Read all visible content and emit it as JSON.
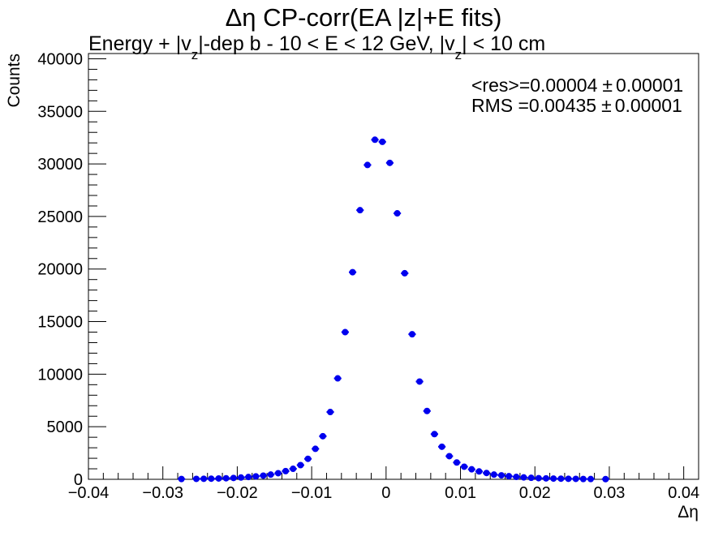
{
  "chart_data": {
    "type": "scatter",
    "title": "Δη CP-corr(EA |z|+E fits)",
    "subtitle": {
      "part1": "Energy + |v",
      "sub1": "z",
      "part2": "|-dep b   -   10 < E < 12 GeV, |v",
      "sub2": "z",
      "part3": "| < 10 cm"
    },
    "xlabel": "Δη",
    "ylabel": "Counts",
    "xlim": [
      -0.04,
      0.042
    ],
    "ylim": [
      0,
      40500
    ],
    "xticks": [
      -0.04,
      -0.03,
      -0.02,
      -0.01,
      0,
      0.01,
      0.02,
      0.03,
      0.04
    ],
    "xtick_labels": [
      "−0.04",
      "−0.03",
      "−0.02",
      "−0.01",
      "0",
      "0.01",
      "0.02",
      "0.03",
      "0.04"
    ],
    "yticks": [
      0,
      5000,
      10000,
      15000,
      20000,
      25000,
      30000,
      35000,
      40000
    ],
    "ytick_labels": [
      "0",
      "5000",
      "10000",
      "15000",
      "20000",
      "25000",
      "30000",
      "35000",
      "40000"
    ],
    "stats": [
      {
        "label": "<res>=0.00004",
        "pm": "±",
        "err": "0.00001"
      },
      {
        "label": "RMS =0.00435",
        "pm": "±",
        "err": "0.00001"
      }
    ],
    "marker_color": "#0000ee",
    "bin_halfwidth": 0.0005,
    "series": [
      {
        "x": [
          -0.0275,
          -0.0255,
          -0.0245,
          -0.0235,
          -0.0225,
          -0.0215,
          -0.0205,
          -0.0195,
          -0.0185,
          -0.0175,
          -0.0165,
          -0.0155,
          -0.0145,
          -0.0135,
          -0.0125,
          -0.0115,
          -0.0105,
          -0.0095,
          -0.0085,
          -0.0075,
          -0.0065,
          -0.0055,
          -0.0045,
          -0.0035,
          -0.0025,
          -0.0015,
          -0.0005,
          0.0005,
          0.0015,
          0.0025,
          0.0035,
          0.0045,
          0.0055,
          0.0065,
          0.0075,
          0.0085,
          0.0095,
          0.0105,
          0.0115,
          0.0125,
          0.0135,
          0.0145,
          0.0155,
          0.0165,
          0.0175,
          0.0185,
          0.0195,
          0.0205,
          0.0215,
          0.0225,
          0.0235,
          0.0245,
          0.0255,
          0.0265,
          0.0275,
          0.0295
        ],
        "y": [
          30,
          40,
          50,
          60,
          80,
          100,
          130,
          170,
          220,
          280,
          350,
          450,
          580,
          780,
          1000,
          1350,
          1950,
          2900,
          4100,
          6400,
          9600,
          14000,
          19700,
          25600,
          29900,
          32300,
          32100,
          30100,
          25300,
          19600,
          13800,
          9300,
          6500,
          4300,
          3100,
          2200,
          1600,
          1200,
          950,
          750,
          600,
          450,
          380,
          300,
          230,
          180,
          140,
          110,
          90,
          70,
          60,
          50,
          40,
          30,
          25,
          20
        ]
      }
    ]
  }
}
